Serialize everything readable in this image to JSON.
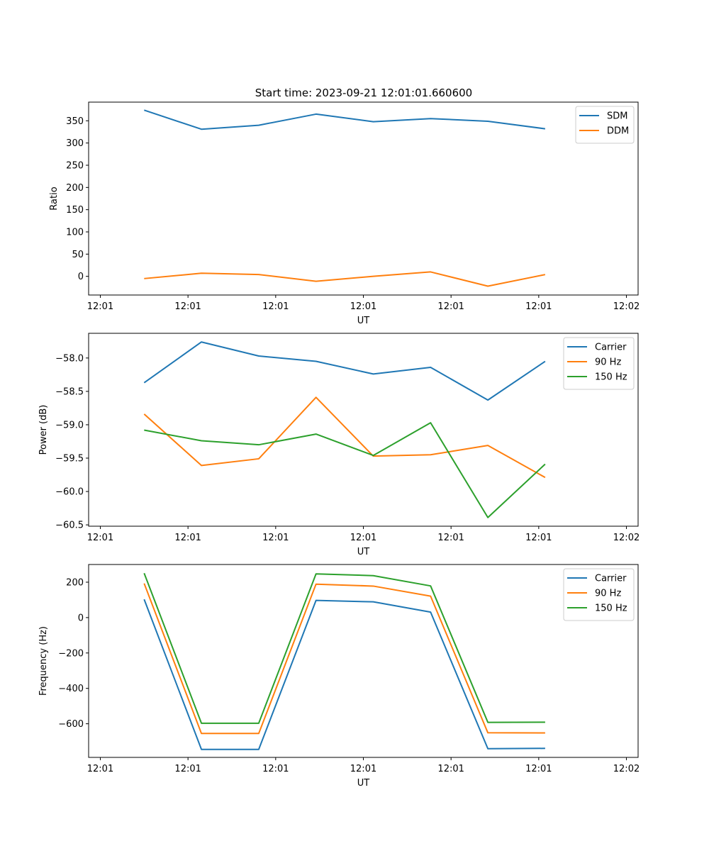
{
  "title": "Start time: 2023-09-21 12:01:01.660600",
  "colors": {
    "blue": "#1f77b4",
    "orange": "#ff7f0e",
    "green": "#2ca02c"
  },
  "chart_data": [
    {
      "type": "line",
      "xlabel": "UT",
      "ylabel": "Ratio",
      "xlim": [
        -0.2,
        9.2
      ],
      "ylim": [
        -42,
        392
      ],
      "x_ticks": [
        0,
        1.5,
        3,
        4.5,
        6,
        7.5,
        9
      ],
      "x_tick_labels": [
        "12:01",
        "12:01",
        "12:01",
        "12:01",
        "12:01",
        "12:01",
        "12:02"
      ],
      "y_ticks": [
        0,
        50,
        100,
        150,
        200,
        250,
        300,
        350
      ],
      "y_tick_labels": [
        "0",
        "50",
        "100",
        "150",
        "200",
        "250",
        "300",
        "350"
      ],
      "x": [
        0.75,
        1.73,
        2.71,
        3.69,
        4.67,
        5.65,
        6.63,
        7.61
      ],
      "series": [
        {
          "name": "SDM",
          "color": "#1f77b4",
          "values": [
            374,
            331,
            340,
            365,
            348,
            355,
            349,
            332
          ]
        },
        {
          "name": "DDM",
          "color": "#ff7f0e",
          "values": [
            -5,
            7,
            4,
            -11,
            0,
            10,
            -22,
            4
          ]
        }
      ],
      "legend": "top-right"
    },
    {
      "type": "line",
      "xlabel": "UT",
      "ylabel": "Power (dB)",
      "xlim": [
        -0.2,
        9.2
      ],
      "ylim": [
        -60.52,
        -57.63
      ],
      "x_ticks": [
        0,
        1.5,
        3,
        4.5,
        6,
        7.5,
        9
      ],
      "x_tick_labels": [
        "12:01",
        "12:01",
        "12:01",
        "12:01",
        "12:01",
        "12:01",
        "12:02"
      ],
      "y_ticks": [
        -58.0,
        -58.5,
        -59.0,
        -59.5,
        -60.0,
        -60.5
      ],
      "y_tick_labels": [
        "−58.0",
        "−58.5",
        "−59.0",
        "−59.5",
        "−60.0",
        "−60.5"
      ],
      "x": [
        0.75,
        1.73,
        2.71,
        3.69,
        4.67,
        5.65,
        6.63,
        7.61
      ],
      "series": [
        {
          "name": "Carrier",
          "color": "#1f77b4",
          "values": [
            -58.37,
            -57.76,
            -57.97,
            -58.05,
            -58.24,
            -58.14,
            -58.63,
            -58.05
          ]
        },
        {
          "name": "90 Hz",
          "color": "#ff7f0e",
          "values": [
            -58.84,
            -59.61,
            -59.51,
            -58.59,
            -59.47,
            -59.45,
            -59.31,
            -59.79
          ]
        },
        {
          "name": "150 Hz",
          "color": "#2ca02c",
          "values": [
            -59.08,
            -59.24,
            -59.3,
            -59.14,
            -59.46,
            -58.97,
            -60.39,
            -59.59
          ]
        }
      ],
      "legend": "top-right"
    },
    {
      "type": "line",
      "xlabel": "UT",
      "ylabel": "Frequency (Hz)",
      "xlim": [
        -0.2,
        9.2
      ],
      "ylim": [
        -790,
        300
      ],
      "x_ticks": [
        0,
        1.5,
        3,
        4.5,
        6,
        7.5,
        9
      ],
      "x_tick_labels": [
        "12:01",
        "12:01",
        "12:01",
        "12:01",
        "12:01",
        "12:01",
        "12:02"
      ],
      "y_ticks": [
        200,
        0,
        -200,
        -400,
        -600
      ],
      "y_tick_labels": [
        "200",
        "0",
        "−200",
        "−400",
        "−600"
      ],
      "x": [
        0.75,
        1.73,
        2.71,
        3.69,
        4.67,
        5.65,
        6.63,
        7.61
      ],
      "series": [
        {
          "name": "Carrier",
          "color": "#1f77b4",
          "values": [
            103,
            -745,
            -745,
            97,
            89,
            31,
            -741,
            -739
          ]
        },
        {
          "name": "90 Hz",
          "color": "#ff7f0e",
          "values": [
            193,
            -655,
            -655,
            189,
            178,
            121,
            -651,
            -652
          ]
        },
        {
          "name": "150 Hz",
          "color": "#2ca02c",
          "values": [
            251,
            -597,
            -597,
            247,
            237,
            179,
            -592,
            -591
          ]
        }
      ],
      "legend": "top-right"
    }
  ]
}
